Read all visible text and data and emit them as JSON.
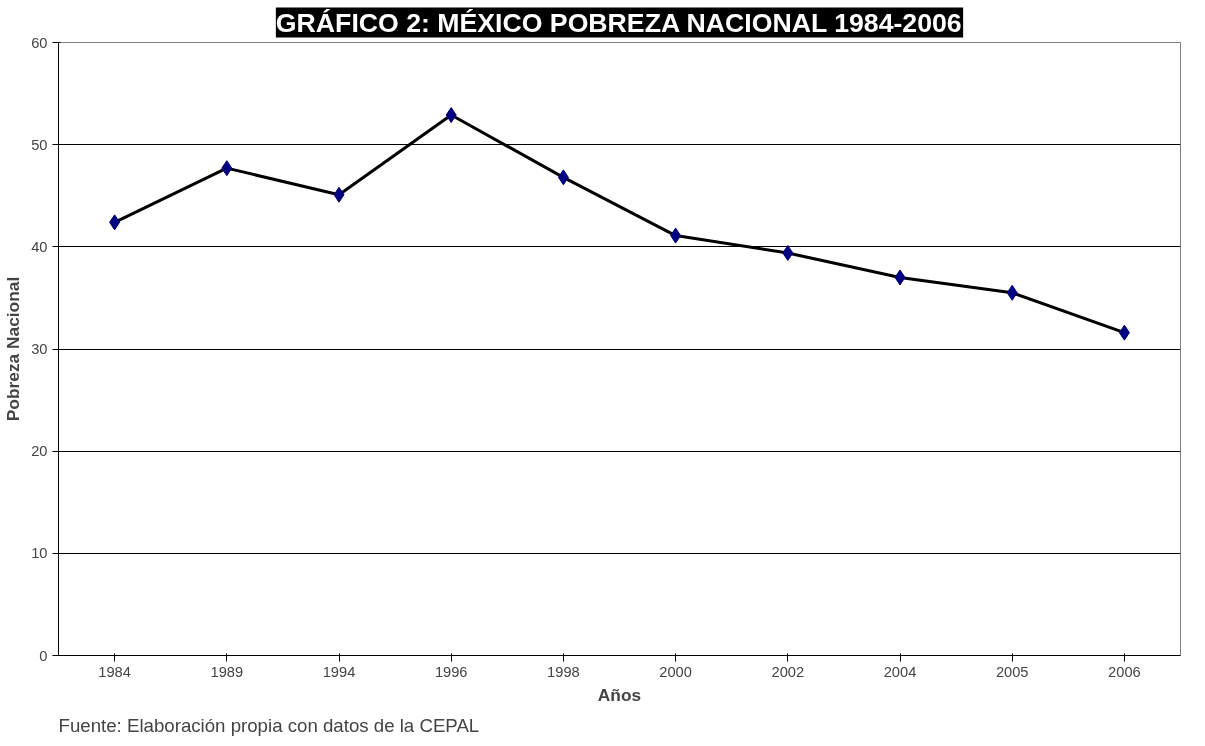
{
  "chart_data": {
    "type": "line",
    "title": "GRÁFICO 2: MÉXICO POBREZA NACIONAL 1984-2006",
    "xlabel": "Años",
    "ylabel": "Pobreza Nacional",
    "categories": [
      "1984",
      "1989",
      "1994",
      "1996",
      "1998",
      "2000",
      "2002",
      "2004",
      "2005",
      "2006"
    ],
    "series": [
      {
        "color": "#000000",
        "colors": [
          "#000080",
          "#000080",
          "#000080",
          "#000080",
          "#000080",
          "#000080",
          "#000080",
          "#000080",
          "#000080",
          "#000080"
        ],
        "values": [
          42.4,
          47.7,
          45.1,
          52.9,
          46.8,
          41.1,
          39.4,
          37.0,
          35.5,
          31.6
        ]
      }
    ],
    "ylim": [
      0,
      60
    ],
    "yticks": [
      0,
      10,
      20,
      30,
      40,
      50,
      60
    ],
    "grid": "y",
    "marker": "diamond",
    "line_style": "solid",
    "annotations": [
      "Fuente: Elaboración propia con datos de la CEPAL"
    ]
  }
}
